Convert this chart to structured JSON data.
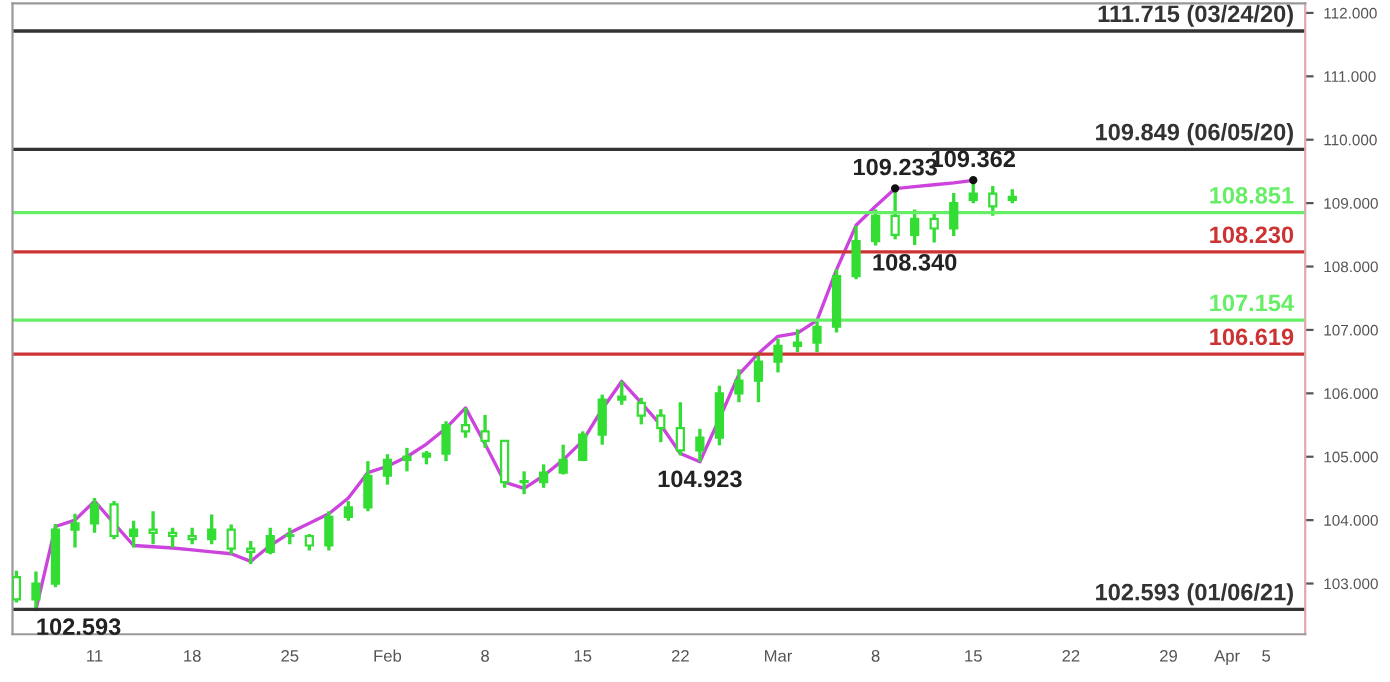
{
  "chart_data": {
    "type": "candlestick",
    "categories": [
      null,
      null,
      null,
      null,
      "11",
      null,
      null,
      null,
      null,
      "18",
      null,
      null,
      null,
      null,
      "25",
      null,
      null,
      null,
      null,
      "Feb",
      null,
      null,
      null,
      null,
      "8",
      null,
      null,
      null,
      null,
      "15",
      null,
      null,
      null,
      null,
      "22",
      null,
      null,
      null,
      null,
      "Mar",
      null,
      null,
      null,
      null,
      "8",
      null,
      null,
      null,
      null,
      "15",
      null,
      null,
      null,
      null,
      "22",
      null,
      null,
      null,
      null,
      "29",
      null,
      null,
      "Apr",
      null,
      "5",
      null
    ],
    "series": [
      {
        "color": "#33dd33",
        "ohlc": [
          [
            103.1,
            103.2,
            102.7,
            102.75
          ],
          [
            102.75,
            103.19,
            102.593,
            103.0
          ],
          [
            103.0,
            103.94,
            102.94,
            103.85
          ],
          [
            103.85,
            104.1,
            103.57,
            103.95
          ],
          [
            103.95,
            104.35,
            103.8,
            104.25
          ],
          [
            104.25,
            104.3,
            103.7,
            103.75
          ],
          [
            103.75,
            103.99,
            103.57,
            103.85
          ],
          [
            103.85,
            104.14,
            103.62,
            103.8
          ],
          [
            103.8,
            103.88,
            103.57,
            103.75
          ],
          [
            103.75,
            103.88,
            103.62,
            103.7
          ],
          [
            103.7,
            104.09,
            103.62,
            103.85
          ],
          [
            103.85,
            103.93,
            103.46,
            103.55
          ],
          [
            103.55,
            103.67,
            103.31,
            103.5
          ],
          [
            103.5,
            103.88,
            103.46,
            103.75
          ],
          [
            103.75,
            103.88,
            103.62,
            103.75
          ],
          [
            103.75,
            103.78,
            103.52,
            103.6
          ],
          [
            103.6,
            104.14,
            103.52,
            104.05
          ],
          [
            104.05,
            104.3,
            103.99,
            104.2
          ],
          [
            104.2,
            104.93,
            104.14,
            104.7
          ],
          [
            104.7,
            105.04,
            104.56,
            104.95
          ],
          [
            104.95,
            105.14,
            104.77,
            105.0
          ],
          [
            105.0,
            105.09,
            104.88,
            105.05
          ],
          [
            105.05,
            105.56,
            104.93,
            105.5
          ],
          [
            105.5,
            105.77,
            105.3,
            105.4
          ],
          [
            105.4,
            105.66,
            105.14,
            105.25
          ],
          [
            105.25,
            105.25,
            104.51,
            104.6
          ],
          [
            104.6,
            104.77,
            104.41,
            104.6
          ],
          [
            104.6,
            104.88,
            104.51,
            104.75
          ],
          [
            104.75,
            105.19,
            104.72,
            104.95
          ],
          [
            104.95,
            105.4,
            104.93,
            105.35
          ],
          [
            105.35,
            105.98,
            105.19,
            105.9
          ],
          [
            105.9,
            106.19,
            105.82,
            105.95
          ],
          [
            105.85,
            105.93,
            105.51,
            105.65
          ],
          [
            105.65,
            105.75,
            105.23,
            105.45
          ],
          [
            105.45,
            105.86,
            105.02,
            105.1
          ],
          [
            105.1,
            105.44,
            104.923,
            105.3
          ],
          [
            105.3,
            106.12,
            105.18,
            106.0
          ],
          [
            106.0,
            106.38,
            105.86,
            106.2
          ],
          [
            106.2,
            106.65,
            105.86,
            106.5
          ],
          [
            106.5,
            106.86,
            106.33,
            106.75
          ],
          [
            106.75,
            107.01,
            106.65,
            106.8
          ],
          [
            106.8,
            107.17,
            106.65,
            107.05
          ],
          [
            107.05,
            107.96,
            106.96,
            107.85
          ],
          [
            107.85,
            108.64,
            107.8,
            108.4
          ],
          [
            108.4,
            108.9,
            108.33,
            108.8
          ],
          [
            108.8,
            109.233,
            108.43,
            108.5
          ],
          [
            108.5,
            108.9,
            108.34,
            108.75
          ],
          [
            108.75,
            108.85,
            108.38,
            108.6
          ],
          [
            108.6,
            109.16,
            108.48,
            109.0
          ],
          [
            109.05,
            109.362,
            109.0,
            109.15
          ],
          [
            109.15,
            109.27,
            108.8,
            108.95
          ],
          [
            109.05,
            109.22,
            109.0,
            109.1
          ],
          null,
          null,
          null,
          null,
          null,
          null,
          null,
          null,
          null,
          null,
          null,
          null,
          null,
          null
        ]
      },
      {
        "type": "line",
        "color": "#cc44dd",
        "values": [
          null,
          102.59,
          103.9,
          104.0,
          104.3,
          103.95,
          103.6,
          103.58,
          103.56,
          103.53,
          103.5,
          103.47,
          103.35,
          103.6,
          103.8,
          103.95,
          104.1,
          104.35,
          104.75,
          104.85,
          105.0,
          105.2,
          105.45,
          105.77,
          105.2,
          104.6,
          104.5,
          104.7,
          104.95,
          105.25,
          105.75,
          106.19,
          105.85,
          105.5,
          105.05,
          104.92,
          105.6,
          106.3,
          106.63,
          106.9,
          106.95,
          107.15,
          107.95,
          108.65,
          108.95,
          109.23,
          109.26,
          109.29,
          109.32,
          109.36,
          null,
          null,
          null,
          null,
          null,
          null,
          null,
          null,
          null,
          null,
          null,
          null,
          null,
          null,
          null,
          null
        ]
      }
    ],
    "ylim": [
      102.2,
      112.15
    ],
    "yticks": [
      {
        "value": 103,
        "label": "103.000"
      },
      {
        "value": 104,
        "label": "104.000"
      },
      {
        "value": 105,
        "label": "105.000"
      },
      {
        "value": 106,
        "label": "106.000"
      },
      {
        "value": 107,
        "label": "107.000"
      },
      {
        "value": 108,
        "label": "108.000"
      },
      {
        "value": 109,
        "label": "109.000"
      },
      {
        "value": 110,
        "label": "110.000"
      },
      {
        "value": 111,
        "label": "111.000"
      },
      {
        "value": 112,
        "label": "112.000"
      }
    ],
    "ref_lines": [
      {
        "axis": "y",
        "value": 111.715,
        "label": "111.715 (03/24/20)",
        "color": "#333333"
      },
      {
        "axis": "y",
        "value": 109.849,
        "label": "109.849 (06/05/20)",
        "color": "#333333"
      },
      {
        "axis": "y",
        "value": 108.851,
        "label": "108.851",
        "color": "#66ee66"
      },
      {
        "axis": "y",
        "value": 108.23,
        "label": "108.230",
        "color": "#cc3333"
      },
      {
        "axis": "y",
        "value": 107.154,
        "label": "107.154",
        "color": "#66ee66"
      },
      {
        "axis": "y",
        "value": 106.619,
        "label": "106.619",
        "color": "#cc3333"
      },
      {
        "axis": "y",
        "value": 102.593,
        "label": "102.593 (01/06/21)",
        "color": "#333333"
      }
    ],
    "annotations": [
      {
        "text": "109.233",
        "y": 109.233
      },
      {
        "text": "109.362",
        "y": 109.362
      },
      {
        "text": "108.340",
        "y": 108.34
      },
      {
        "text": "104.923",
        "y": 104.923
      },
      {
        "text": "102.593",
        "y": 102.593
      }
    ],
    "grid": false,
    "legend": false
  }
}
